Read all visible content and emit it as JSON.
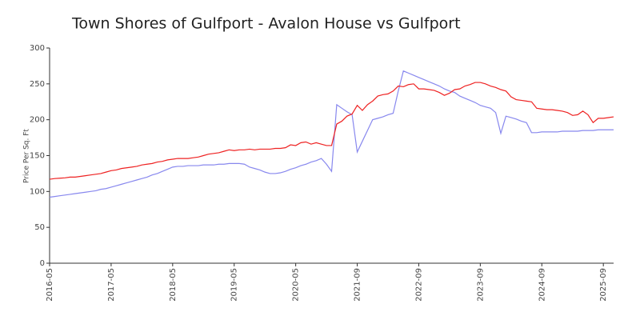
{
  "chart_data": {
    "type": "line",
    "title": "Town Shores of Gulfport - Avalon House vs Gulfport",
    "y_label": "Price Per Sq. Ft",
    "categories": [
      "2016-05",
      null,
      null,
      null,
      null,
      null,
      null,
      null,
      null,
      null,
      null,
      null,
      "2017-05",
      null,
      null,
      null,
      null,
      null,
      null,
      null,
      null,
      null,
      null,
      null,
      "2018-05",
      null,
      null,
      null,
      null,
      null,
      null,
      null,
      null,
      null,
      null,
      null,
      "2019-05",
      null,
      null,
      null,
      null,
      null,
      null,
      null,
      null,
      null,
      null,
      null,
      "2020-05",
      null,
      null,
      null,
      null,
      null,
      null,
      null,
      null,
      null,
      null,
      null,
      "2021-09",
      null,
      null,
      null,
      null,
      null,
      null,
      null,
      null,
      null,
      null,
      null,
      "2022-09",
      null,
      null,
      null,
      null,
      null,
      null,
      null,
      null,
      null,
      null,
      null,
      "2023-09",
      null,
      null,
      null,
      null,
      null,
      null,
      null,
      null,
      null,
      null,
      null,
      "2024-09",
      null,
      null,
      null,
      null,
      null,
      null,
      null,
      null,
      null,
      null,
      null,
      "2025-09",
      null,
      null
    ],
    "series": [
      {
        "color": "#ee2222",
        "values": [
          117,
          118,
          118.5,
          119,
          120,
          120,
          121,
          122,
          123,
          124,
          125,
          127,
          129,
          130,
          132,
          133,
          134,
          135,
          137,
          138,
          139,
          141,
          142,
          144,
          145,
          146,
          146,
          146,
          147,
          148,
          150,
          152,
          153,
          154,
          156,
          158,
          157,
          158,
          158,
          159,
          158,
          159,
          159,
          159,
          160,
          160,
          161,
          165,
          164,
          168,
          169,
          166,
          168,
          166,
          164,
          164,
          194,
          198,
          205,
          208,
          220,
          213,
          221,
          226,
          233,
          235,
          236,
          240,
          247,
          246,
          249,
          250,
          243,
          243,
          242,
          241,
          238,
          234,
          237,
          242,
          243,
          247,
          249,
          252,
          252,
          250,
          247,
          245,
          242,
          240,
          232,
          228,
          227,
          226,
          225,
          216,
          215,
          214,
          214,
          213,
          212,
          210,
          206,
          207,
          212,
          207,
          196,
          202,
          202,
          203,
          204
        ]
      },
      {
        "color": "#8888ee",
        "values": [
          92,
          93,
          94,
          95,
          96,
          97,
          98,
          99,
          100,
          101,
          103,
          104,
          106,
          108,
          110,
          112,
          114,
          116,
          118,
          120,
          123,
          125,
          128,
          131,
          134,
          135,
          135,
          136,
          136,
          136,
          137,
          137,
          137,
          138,
          138,
          139,
          139,
          139,
          138,
          134,
          132,
          130,
          127,
          125,
          125,
          126,
          128,
          131,
          133,
          136,
          138,
          141,
          143,
          146,
          138,
          128,
          221,
          216,
          211,
          207,
          155,
          170,
          185,
          200,
          202,
          204,
          207,
          209,
          240,
          268,
          265,
          262,
          259,
          256,
          253,
          250,
          247,
          243,
          240,
          238,
          233,
          230,
          227,
          224,
          220,
          218,
          216,
          210,
          181,
          205,
          203,
          201,
          198,
          196,
          182,
          182,
          183,
          183,
          183,
          183,
          184,
          184,
          184,
          184,
          185,
          185,
          185,
          186,
          186,
          186,
          186
        ]
      }
    ],
    "ylim": [
      0,
      300
    ],
    "yticks": [
      0,
      50,
      100,
      150,
      200,
      250,
      300
    ],
    "grid": false
  }
}
